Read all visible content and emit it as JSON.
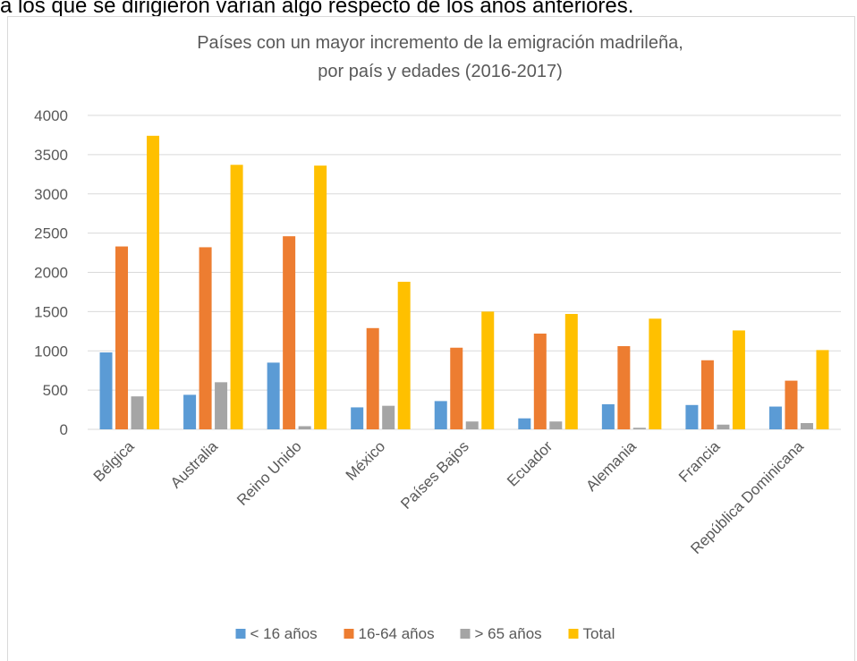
{
  "document": {
    "text_above": "a los que se dirigieron varían algo respecto de los años anteriores."
  },
  "chart_data": {
    "type": "bar",
    "title": [
      "Países con un mayor incremento de la emigración madrileña,",
      "por país y edades (2016-2017)"
    ],
    "categories": [
      "Bélgica",
      "Australia",
      "Reino Unido",
      "México",
      "Países Bajos",
      "Ecuador",
      "Alemania",
      "Francia",
      "República Dominicana"
    ],
    "series": [
      {
        "name": "< 16 años",
        "color": "#5b9bd5",
        "values": [
          980,
          440,
          850,
          280,
          360,
          140,
          320,
          310,
          290
        ]
      },
      {
        "name": "16-64 años",
        "color": "#ed7d31",
        "values": [
          2330,
          2320,
          2460,
          1290,
          1040,
          1220,
          1060,
          880,
          620
        ]
      },
      {
        "name": "> 65 años",
        "color": "#a5a5a5",
        "values": [
          420,
          600,
          40,
          300,
          100,
          100,
          20,
          60,
          80
        ]
      },
      {
        "name": "Total",
        "color": "#ffc000",
        "values": [
          3740,
          3370,
          3360,
          1880,
          1500,
          1470,
          1410,
          1260,
          1010
        ]
      }
    ],
    "ylim": [
      0,
      4000
    ],
    "yticks": [
      0,
      500,
      1000,
      1500,
      2000,
      2500,
      3000,
      3500,
      4000
    ],
    "grid": true,
    "legend": "bottom"
  }
}
